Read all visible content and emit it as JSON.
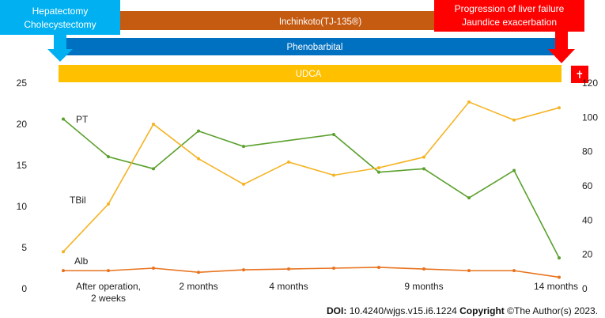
{
  "chart_data": {
    "type": "line",
    "left_axis": {
      "ticks": [
        0,
        5,
        10,
        15,
        20,
        25
      ],
      "range": [
        0,
        25
      ]
    },
    "right_axis": {
      "ticks": [
        0,
        20,
        40,
        60,
        80,
        100,
        120
      ],
      "range": [
        0,
        120
      ]
    },
    "x_labels": [
      {
        "text": [
          "After operation,",
          "2 weeks"
        ],
        "pos": 1
      },
      {
        "text": [
          "2 months"
        ],
        "pos": 3
      },
      {
        "text": [
          "4 months"
        ],
        "pos": 5
      },
      {
        "text": [
          "9 months"
        ],
        "pos": 8
      },
      {
        "text": [
          "14 months"
        ],
        "pos": 11
      }
    ],
    "series": [
      {
        "name": "PT",
        "axis": "right",
        "color": "#5aa02c",
        "x": [
          0,
          1,
          2,
          3,
          4,
          6,
          7,
          8,
          9,
          10,
          11
        ],
        "values": [
          99,
          77,
          70,
          92,
          83,
          90,
          68,
          70,
          53,
          69,
          18
        ]
      },
      {
        "name": "TBil",
        "axis": "left",
        "color": "#f5b323",
        "x": [
          0,
          1,
          2,
          3,
          4,
          5,
          6,
          7,
          8,
          9,
          10,
          11
        ],
        "values": [
          4.5,
          10.3,
          20,
          15.8,
          12.7,
          15.4,
          13.8,
          14.7,
          16,
          22.7,
          20.5,
          22
        ]
      },
      {
        "name": "Alb",
        "axis": "left",
        "color": "#e8731f",
        "x": [
          0,
          1,
          2,
          3,
          4,
          5,
          6,
          7,
          8,
          9,
          10,
          11
        ],
        "values": [
          2.2,
          2.2,
          2.5,
          2.0,
          2.3,
          2.4,
          2.5,
          2.6,
          2.4,
          2.2,
          2.2,
          1.4
        ]
      }
    ]
  },
  "treatments": [
    {
      "label": "Inchinkoto(TJ-135®)",
      "color": "#c55a11"
    },
    {
      "label": "Phenobarbital",
      "color": "#0070c0"
    },
    {
      "label": "UDCA",
      "color": "#ffc000"
    }
  ],
  "callouts": {
    "surgery": [
      "Hepatectomy",
      "Cholecystectomy"
    ],
    "failure": [
      "Progression of liver failure",
      "Jaundice exacerbation"
    ],
    "death_symbol": "✝",
    "surgery_color": "#00b0f0",
    "failure_color": "#ff0000"
  },
  "footer": {
    "doi_label": "DOI:",
    "doi_text": "10.4240/wjgs.v15.i6.1224",
    "copyright_label": "Copyright",
    "copyright_text": "©The Author(s) 2023."
  }
}
